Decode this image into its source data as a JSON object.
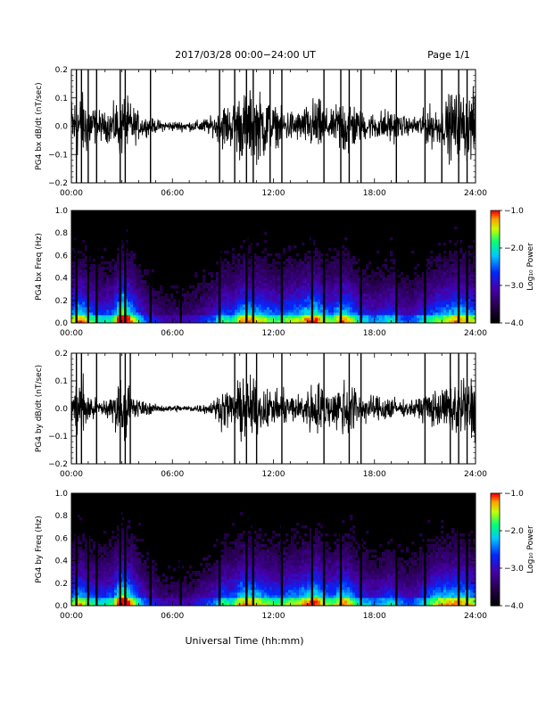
{
  "header": {
    "title": "2017/03/28  00:00−24:00 UT",
    "page": "Page 1/1"
  },
  "footer": {
    "xlabel": "Universal Time (hh:mm)"
  },
  "colorbar": {
    "label": "Log₁₀ Power",
    "ticks": [
      "−1.0",
      "−2.0",
      "−3.0",
      "−4.0"
    ],
    "colors": [
      "#ff0000",
      "#ffff00",
      "#00ff00",
      "#00ffff",
      "#0000ff",
      "#4b0082",
      "#000000"
    ]
  },
  "chart_data": [
    {
      "type": "line",
      "ylabel": "PG4 bx dB/dt (nT/sec)",
      "xlim": [
        0,
        24
      ],
      "ylim": [
        -0.2,
        0.2
      ],
      "x_ticks": [
        "00:00",
        "06:00",
        "12:00",
        "18:00",
        "24:00"
      ],
      "y_ticks": [
        "0.2",
        "0.1",
        "0.0",
        "−0.1",
        "−0.2"
      ],
      "x_hours": [
        0.0,
        0.5,
        1.0,
        1.5,
        2.0,
        2.5,
        3.0,
        3.5,
        4.0,
        4.5,
        5.0,
        5.5,
        6.0,
        6.5,
        7.0,
        7.5,
        8.0,
        8.5,
        9.0,
        9.5,
        10.0,
        10.5,
        11.0,
        11.5,
        12.0,
        12.5,
        13.0,
        13.5,
        14.0,
        14.5,
        15.0,
        15.5,
        16.0,
        16.5,
        17.0,
        17.5,
        18.0,
        18.5,
        19.0,
        19.5,
        20.0,
        20.5,
        21.0,
        21.5,
        22.0,
        22.5,
        23.0,
        23.5,
        24.0
      ],
      "amplitude": [
        0.18,
        0.2,
        0.17,
        0.1,
        0.08,
        0.12,
        0.2,
        0.14,
        0.08,
        0.05,
        0.04,
        0.03,
        0.03,
        0.03,
        0.03,
        0.035,
        0.05,
        0.06,
        0.14,
        0.12,
        0.2,
        0.2,
        0.2,
        0.2,
        0.12,
        0.1,
        0.1,
        0.09,
        0.12,
        0.18,
        0.12,
        0.08,
        0.18,
        0.2,
        0.1,
        0.08,
        0.08,
        0.1,
        0.1,
        0.07,
        0.05,
        0.06,
        0.1,
        0.13,
        0.1,
        0.2,
        0.2,
        0.2,
        0.2
      ],
      "spikes_hours": [
        0.3,
        0.6,
        1.0,
        1.5,
        2.9,
        3.2,
        4.7,
        8.8,
        9.7,
        10.4,
        10.8,
        11.8,
        12.5,
        15.0,
        16.0,
        16.5,
        17.2,
        19.3,
        21.0,
        22.0,
        23.0,
        23.5
      ]
    },
    {
      "type": "heatmap",
      "ylabel": "PG4 bx Freq (Hz)",
      "xlim": [
        0,
        24
      ],
      "ylim": [
        0.0,
        1.0
      ],
      "x_ticks": [
        "00:00",
        "06:00",
        "12:00",
        "18:00",
        "24:00"
      ],
      "y_ticks": [
        "1.0",
        "0.8",
        "0.6",
        "0.4",
        "0.2",
        "0.0"
      ],
      "colorbar_range": [
        -4.0,
        -1.0
      ],
      "x_hours": [
        0.0,
        0.5,
        1.0,
        1.5,
        2.0,
        2.5,
        3.0,
        3.5,
        4.0,
        4.5,
        5.0,
        5.5,
        6.0,
        6.5,
        7.0,
        7.5,
        8.0,
        8.5,
        9.0,
        9.5,
        10.0,
        10.5,
        11.0,
        11.5,
        12.0,
        12.5,
        13.0,
        13.5,
        14.0,
        14.5,
        15.0,
        15.5,
        16.0,
        16.5,
        17.0,
        17.5,
        18.0,
        18.5,
        19.0,
        19.5,
        20.0,
        20.5,
        21.0,
        21.5,
        22.0,
        22.5,
        23.0,
        23.5,
        24.0
      ],
      "activity": [
        0.6,
        0.7,
        0.6,
        0.5,
        0.5,
        0.55,
        0.9,
        0.7,
        0.5,
        0.35,
        0.3,
        0.25,
        0.25,
        0.25,
        0.25,
        0.3,
        0.35,
        0.4,
        0.55,
        0.5,
        0.65,
        0.7,
        0.65,
        0.6,
        0.55,
        0.55,
        0.6,
        0.6,
        0.7,
        0.75,
        0.6,
        0.55,
        0.7,
        0.65,
        0.5,
        0.45,
        0.4,
        0.45,
        0.5,
        0.4,
        0.35,
        0.4,
        0.5,
        0.55,
        0.6,
        0.65,
        0.7,
        0.65,
        0.6
      ],
      "gap_hours": [
        0.3,
        1.0,
        1.5,
        2.9,
        3.2,
        4.7,
        6.5,
        8.8,
        10.4,
        10.8,
        12.5,
        14.3,
        15.0,
        16.0,
        17.2,
        19.3,
        21.0,
        23.0,
        23.5
      ]
    },
    {
      "type": "line",
      "ylabel": "PG4 by dB/dt (nT/sec)",
      "xlim": [
        0,
        24
      ],
      "ylim": [
        -0.2,
        0.2
      ],
      "x_ticks": [
        "00:00",
        "06:00",
        "12:00",
        "18:00",
        "24:00"
      ],
      "y_ticks": [
        "0.2",
        "0.1",
        "0.0",
        "−0.1",
        "−0.2"
      ],
      "x_hours": [
        0.0,
        0.5,
        1.0,
        1.5,
        2.0,
        2.5,
        3.0,
        3.5,
        4.0,
        4.5,
        5.0,
        5.5,
        6.0,
        6.5,
        7.0,
        7.5,
        8.0,
        8.5,
        9.0,
        9.5,
        10.0,
        10.5,
        11.0,
        11.5,
        12.0,
        12.5,
        13.0,
        13.5,
        14.0,
        14.5,
        15.0,
        15.5,
        16.0,
        16.5,
        17.0,
        17.5,
        18.0,
        18.5,
        19.0,
        19.5,
        20.0,
        20.5,
        21.0,
        21.5,
        22.0,
        22.5,
        23.0,
        23.5,
        24.0
      ],
      "amplitude": [
        0.1,
        0.2,
        0.12,
        0.05,
        0.06,
        0.1,
        0.2,
        0.12,
        0.06,
        0.04,
        0.025,
        0.02,
        0.02,
        0.02,
        0.02,
        0.025,
        0.03,
        0.05,
        0.12,
        0.1,
        0.18,
        0.2,
        0.15,
        0.13,
        0.1,
        0.1,
        0.1,
        0.08,
        0.13,
        0.18,
        0.13,
        0.1,
        0.17,
        0.2,
        0.12,
        0.08,
        0.07,
        0.09,
        0.08,
        0.05,
        0.04,
        0.06,
        0.09,
        0.12,
        0.1,
        0.18,
        0.2,
        0.2,
        0.2
      ],
      "spikes_hours": [
        0.3,
        0.6,
        1.5,
        2.9,
        3.2,
        3.5,
        9.7,
        10.4,
        11.0,
        12.5,
        15.0,
        16.5,
        17.2,
        21.0,
        22.5,
        23.0,
        23.5
      ]
    },
    {
      "type": "heatmap",
      "ylabel": "PG4 by Freq (Hz)",
      "xlim": [
        0,
        24
      ],
      "ylim": [
        0.0,
        1.0
      ],
      "x_ticks": [
        "00:00",
        "06:00",
        "12:00",
        "18:00",
        "24:00"
      ],
      "y_ticks": [
        "1.0",
        "0.8",
        "0.6",
        "0.4",
        "0.2",
        "0.0"
      ],
      "colorbar_range": [
        -4.0,
        -1.0
      ],
      "x_hours": [
        0.0,
        0.5,
        1.0,
        1.5,
        2.0,
        2.5,
        3.0,
        3.5,
        4.0,
        4.5,
        5.0,
        5.5,
        6.0,
        6.5,
        7.0,
        7.5,
        8.0,
        8.5,
        9.0,
        9.5,
        10.0,
        10.5,
        11.0,
        11.5,
        12.0,
        12.5,
        13.0,
        13.5,
        14.0,
        14.5,
        15.0,
        15.5,
        16.0,
        16.5,
        17.0,
        17.5,
        18.0,
        18.5,
        19.0,
        19.5,
        20.0,
        20.5,
        21.0,
        21.5,
        22.0,
        22.5,
        23.0,
        23.5,
        24.0
      ],
      "activity": [
        0.55,
        0.65,
        0.55,
        0.5,
        0.5,
        0.55,
        0.9,
        0.7,
        0.5,
        0.35,
        0.3,
        0.25,
        0.25,
        0.25,
        0.25,
        0.3,
        0.35,
        0.4,
        0.55,
        0.5,
        0.65,
        0.7,
        0.65,
        0.6,
        0.55,
        0.55,
        0.6,
        0.6,
        0.7,
        0.75,
        0.6,
        0.55,
        0.7,
        0.65,
        0.5,
        0.45,
        0.4,
        0.45,
        0.5,
        0.4,
        0.35,
        0.4,
        0.5,
        0.6,
        0.65,
        0.65,
        0.7,
        0.65,
        0.6
      ],
      "gap_hours": [
        0.3,
        1.0,
        1.5,
        2.9,
        3.2,
        4.7,
        6.5,
        8.8,
        10.4,
        10.8,
        12.5,
        14.3,
        15.0,
        16.0,
        17.2,
        19.3,
        21.0,
        23.0,
        23.5
      ]
    }
  ]
}
